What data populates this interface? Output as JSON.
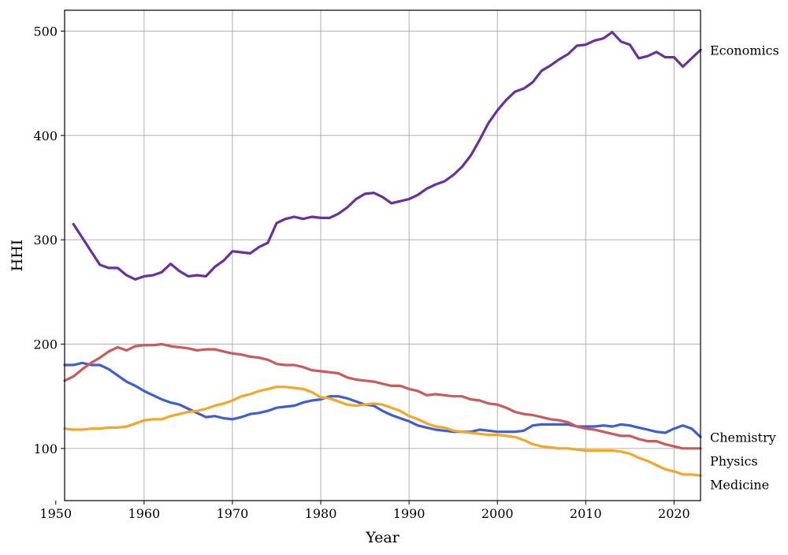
{
  "chart_data": {
    "type": "line",
    "title": "",
    "xlabel": "Year",
    "ylabel": "HHI",
    "xlim": [
      1951,
      2023
    ],
    "ylim": [
      50,
      520
    ],
    "xticks": [
      1950,
      1960,
      1970,
      1980,
      1990,
      2000,
      2010,
      2020
    ],
    "yticks": [
      100,
      200,
      300,
      400,
      500
    ],
    "grid": true,
    "legend": "labels at right end of lines",
    "series": [
      {
        "name": "Economics",
        "color": "#6a2fa0",
        "x": [
          1952,
          1953,
          1954,
          1955,
          1956,
          1957,
          1958,
          1959,
          1960,
          1961,
          1962,
          1963,
          1964,
          1965,
          1966,
          1967,
          1968,
          1969,
          1970,
          1971,
          1972,
          1973,
          1974,
          1975,
          1976,
          1977,
          1978,
          1979,
          1980,
          1981,
          1982,
          1983,
          1984,
          1985,
          1986,
          1987,
          1988,
          1989,
          1990,
          1991,
          1992,
          1993,
          1994,
          1995,
          1996,
          1997,
          1998,
          1999,
          2000,
          2001,
          2002,
          2003,
          2004,
          2005,
          2006,
          2007,
          2008,
          2009,
          2010,
          2011,
          2012,
          2013,
          2014,
          2015,
          2016,
          2017,
          2018,
          2019,
          2020,
          2021,
          2022,
          2023
        ],
        "y": [
          315,
          302,
          289,
          276,
          273,
          273,
          266,
          262,
          265,
          266,
          269,
          277,
          270,
          265,
          266,
          265,
          274,
          280,
          289,
          288,
          287,
          293,
          297,
          316,
          320,
          322,
          320,
          322,
          321,
          321,
          325,
          331,
          339,
          344,
          345,
          341,
          335,
          337,
          339,
          343,
          349,
          353,
          356,
          362,
          370,
          381,
          396,
          412,
          424,
          434,
          442,
          445,
          451,
          462,
          467,
          473,
          478,
          486,
          487,
          491,
          493,
          499,
          490,
          487,
          474,
          476,
          480,
          475,
          475,
          466,
          474,
          482
        ]
      },
      {
        "name": "Chemistry",
        "color": "#3d5fd6",
        "x": [
          1951,
          1952,
          1953,
          1954,
          1955,
          1956,
          1957,
          1958,
          1959,
          1960,
          1961,
          1962,
          1963,
          1964,
          1965,
          1966,
          1967,
          1968,
          1969,
          1970,
          1971,
          1972,
          1973,
          1974,
          1975,
          1976,
          1977,
          1978,
          1979,
          1980,
          1981,
          1982,
          1983,
          1984,
          1985,
          1986,
          1987,
          1988,
          1989,
          1990,
          1991,
          1992,
          1993,
          1994,
          1995,
          1996,
          1997,
          1998,
          1999,
          2000,
          2001,
          2002,
          2003,
          2004,
          2005,
          2006,
          2007,
          2008,
          2009,
          2010,
          2011,
          2012,
          2013,
          2014,
          2015,
          2016,
          2017,
          2018,
          2019,
          2020,
          2021,
          2022,
          2023
        ],
        "y": [
          180,
          180,
          182,
          180,
          180,
          176,
          170,
          164,
          160,
          155,
          151,
          147,
          144,
          142,
          138,
          134,
          130,
          131,
          129,
          128,
          130,
          133,
          134,
          136,
          139,
          140,
          141,
          144,
          146,
          147,
          150,
          150,
          148,
          145,
          142,
          141,
          136,
          132,
          129,
          126,
          122,
          120,
          118,
          117,
          116,
          116,
          116,
          118,
          117,
          116,
          116,
          116,
          117,
          122,
          123,
          123,
          123,
          123,
          121,
          121,
          121,
          122,
          121,
          123,
          122,
          120,
          118,
          116,
          115,
          119,
          122,
          119,
          111
        ]
      },
      {
        "name": "Physics",
        "color": "#cc5a5a",
        "x": [
          1951,
          1952,
          1953,
          1954,
          1955,
          1956,
          1957,
          1958,
          1959,
          1960,
          1961,
          1962,
          1963,
          1964,
          1965,
          1966,
          1967,
          1968,
          1969,
          1970,
          1971,
          1972,
          1973,
          1974,
          1975,
          1976,
          1977,
          1978,
          1979,
          1980,
          1981,
          1982,
          1983,
          1984,
          1985,
          1986,
          1987,
          1988,
          1989,
          1990,
          1991,
          1992,
          1993,
          1994,
          1995,
          1996,
          1997,
          1998,
          1999,
          2000,
          2001,
          2002,
          2003,
          2004,
          2005,
          2006,
          2007,
          2008,
          2009,
          2010,
          2011,
          2012,
          2013,
          2014,
          2015,
          2016,
          2017,
          2018,
          2019,
          2020,
          2021,
          2022,
          2023
        ],
        "y": [
          165,
          169,
          176,
          182,
          187,
          193,
          197,
          194,
          198,
          199,
          199,
          200,
          198,
          197,
          196,
          194,
          195,
          195,
          193,
          191,
          190,
          188,
          187,
          185,
          181,
          180,
          180,
          178,
          175,
          174,
          173,
          172,
          168,
          166,
          165,
          164,
          162,
          160,
          160,
          157,
          155,
          151,
          152,
          151,
          150,
          150,
          147,
          146,
          143,
          142,
          139,
          135,
          133,
          132,
          130,
          128,
          127,
          125,
          121,
          119,
          118,
          116,
          114,
          112,
          112,
          109,
          107,
          107,
          104,
          102,
          100,
          100,
          100
        ]
      },
      {
        "name": "Medicine",
        "color": "#f5a623",
        "x": [
          1951,
          1952,
          1953,
          1954,
          1955,
          1956,
          1957,
          1958,
          1959,
          1960,
          1961,
          1962,
          1963,
          1964,
          1965,
          1966,
          1967,
          1968,
          1969,
          1970,
          1971,
          1972,
          1973,
          1974,
          1975,
          1976,
          1977,
          1978,
          1979,
          1980,
          1981,
          1982,
          1983,
          1984,
          1985,
          1986,
          1987,
          1988,
          1989,
          1990,
          1991,
          1992,
          1993,
          1994,
          1995,
          1996,
          1997,
          1998,
          1999,
          2000,
          2001,
          2002,
          2003,
          2004,
          2005,
          2006,
          2007,
          2008,
          2009,
          2010,
          2011,
          2012,
          2013,
          2014,
          2015,
          2016,
          2017,
          2018,
          2019,
          2020,
          2021,
          2022,
          2023
        ],
        "y": [
          119,
          118,
          118,
          119,
          119,
          120,
          120,
          121,
          124,
          127,
          128,
          128,
          131,
          133,
          135,
          136,
          138,
          141,
          143,
          146,
          150,
          152,
          155,
          157,
          159,
          159,
          158,
          157,
          154,
          149,
          148,
          145,
          142,
          141,
          142,
          143,
          142,
          139,
          136,
          131,
          128,
          124,
          121,
          120,
          117,
          116,
          115,
          114,
          113,
          113,
          112,
          111,
          108,
          104,
          102,
          101,
          100,
          100,
          99,
          98,
          98,
          98,
          98,
          97,
          95,
          91,
          88,
          84,
          80,
          78,
          75,
          75,
          74
        ]
      }
    ]
  }
}
